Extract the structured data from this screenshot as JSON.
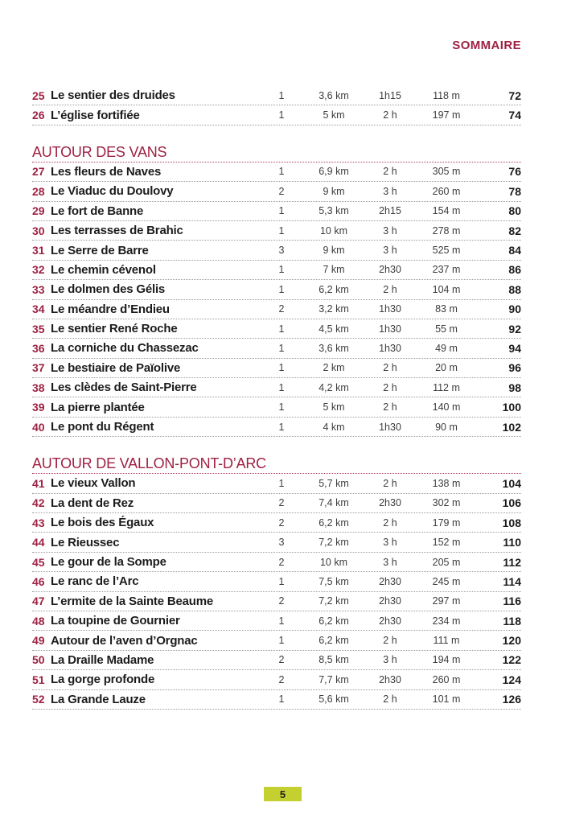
{
  "header": {
    "label": "SOMMAIRE"
  },
  "footer": {
    "page_number": "5"
  },
  "colors": {
    "crimson": "#9e2143",
    "crimson_line": "#b0405c",
    "badge_green": "#c3d02f",
    "separator_gray": "#9b9b9b"
  },
  "table": {
    "columns": [
      "number",
      "title",
      "difficulty",
      "distance",
      "time",
      "elevation",
      "page"
    ],
    "sections": [
      {
        "title": "",
        "rows": [
          {
            "number": "25",
            "title": "Le sentier des druides",
            "difficulty": "1",
            "distance": "3,6 km",
            "time": "1h15",
            "elevation": "118 m",
            "page": "72"
          },
          {
            "number": "26",
            "title": "L’église fortifiée",
            "difficulty": "1",
            "distance": "5 km",
            "time": "2 h",
            "elevation": "197 m",
            "page": "74"
          }
        ]
      },
      {
        "title": "AUTOUR DES VANS",
        "rows": [
          {
            "number": "27",
            "title": "Les fleurs de Naves",
            "difficulty": "1",
            "distance": "6,9 km",
            "time": "2 h",
            "elevation": "305 m",
            "page": "76"
          },
          {
            "number": "28",
            "title": "Le Viaduc du Doulovy",
            "difficulty": "2",
            "distance": "9 km",
            "time": "3 h",
            "elevation": "260 m",
            "page": "78"
          },
          {
            "number": "29",
            "title": "Le fort de Banne",
            "difficulty": "1",
            "distance": "5,3 km",
            "time": "2h15",
            "elevation": "154 m",
            "page": "80"
          },
          {
            "number": "30",
            "title": "Les terrasses de Brahic",
            "difficulty": "1",
            "distance": "10 km",
            "time": "3 h",
            "elevation": "278 m",
            "page": "82"
          },
          {
            "number": "31",
            "title": "Le Serre de Barre",
            "difficulty": "3",
            "distance": "9 km",
            "time": "3 h",
            "elevation": "525 m",
            "page": "84"
          },
          {
            "number": "32",
            "title": "Le chemin cévenol",
            "difficulty": "1",
            "distance": "7 km",
            "time": "2h30",
            "elevation": "237 m",
            "page": "86"
          },
          {
            "number": "33",
            "title": "Le dolmen des Gélis",
            "difficulty": "1",
            "distance": "6,2 km",
            "time": "2 h",
            "elevation": "104 m",
            "page": "88"
          },
          {
            "number": "34",
            "title": "Le méandre d’Endieu",
            "difficulty": "2",
            "distance": "3,2 km",
            "time": "1h30",
            "elevation": "83 m",
            "page": "90"
          },
          {
            "number": "35",
            "title": "Le sentier René Roche",
            "difficulty": "1",
            "distance": "4,5 km",
            "time": "1h30",
            "elevation": "55 m",
            "page": "92"
          },
          {
            "number": "36",
            "title": "La corniche du Chassezac",
            "difficulty": "1",
            "distance": "3,6 km",
            "time": "1h30",
            "elevation": "49 m",
            "page": "94"
          },
          {
            "number": "37",
            "title": "Le bestiaire de Païolive",
            "difficulty": "1",
            "distance": "2 km",
            "time": "2 h",
            "elevation": "20 m",
            "page": "96"
          },
          {
            "number": "38",
            "title": "Les clèdes de Saint-Pierre",
            "difficulty": "1",
            "distance": "4,2 km",
            "time": "2 h",
            "elevation": "112 m",
            "page": "98"
          },
          {
            "number": "39",
            "title": "La pierre plantée",
            "difficulty": "1",
            "distance": "5 km",
            "time": "2 h",
            "elevation": "140 m",
            "page": "100"
          },
          {
            "number": "40",
            "title": "Le pont du Régent",
            "difficulty": "1",
            "distance": "4 km",
            "time": "1h30",
            "elevation": "90 m",
            "page": "102"
          }
        ]
      },
      {
        "title": "AUTOUR DE VALLON-PONT-D’ARC",
        "rows": [
          {
            "number": "41",
            "title": "Le vieux Vallon",
            "difficulty": "1",
            "distance": "5,7 km",
            "time": "2 h",
            "elevation": "138 m",
            "page": "104"
          },
          {
            "number": "42",
            "title": "La dent de Rez",
            "difficulty": "2",
            "distance": "7,4 km",
            "time": "2h30",
            "elevation": "302 m",
            "page": "106"
          },
          {
            "number": "43",
            "title": "Le bois des Égaux",
            "difficulty": "2",
            "distance": "6,2 km",
            "time": "2 h",
            "elevation": "179 m",
            "page": "108"
          },
          {
            "number": "44",
            "title": "Le Rieussec",
            "difficulty": "3",
            "distance": "7,2 km",
            "time": "3 h",
            "elevation": "152 m",
            "page": "110"
          },
          {
            "number": "45",
            "title": "Le gour de la Sompe",
            "difficulty": "2",
            "distance": "10 km",
            "time": "3 h",
            "elevation": "205 m",
            "page": "112"
          },
          {
            "number": "46",
            "title": "Le ranc de l’Arc",
            "difficulty": "1",
            "distance": "7,5 km",
            "time": "2h30",
            "elevation": "245 m",
            "page": "114"
          },
          {
            "number": "47",
            "title": "L’ermite de la Sainte Beaume",
            "difficulty": "2",
            "distance": "7,2 km",
            "time": "2h30",
            "elevation": "297 m",
            "page": "116"
          },
          {
            "number": "48",
            "title": "La toupine de Gournier",
            "difficulty": "1",
            "distance": "6,2 km",
            "time": "2h30",
            "elevation": "234 m",
            "page": "118"
          },
          {
            "number": "49",
            "title": "Autour de l’aven d’Orgnac",
            "difficulty": "1",
            "distance": "6,2 km",
            "time": "2 h",
            "elevation": "111 m",
            "page": "120"
          },
          {
            "number": "50",
            "title": "La Draille Madame",
            "difficulty": "2",
            "distance": "8,5 km",
            "time": "3 h",
            "elevation": "194 m",
            "page": "122"
          },
          {
            "number": "51",
            "title": "La gorge profonde",
            "difficulty": "2",
            "distance": "7,7 km",
            "time": "2h30",
            "elevation": "260 m",
            "page": "124"
          },
          {
            "number": "52",
            "title": "La Grande Lauze",
            "difficulty": "1",
            "distance": "5,6 km",
            "time": "2 h",
            "elevation": "101 m",
            "page": "126"
          }
        ]
      }
    ]
  }
}
